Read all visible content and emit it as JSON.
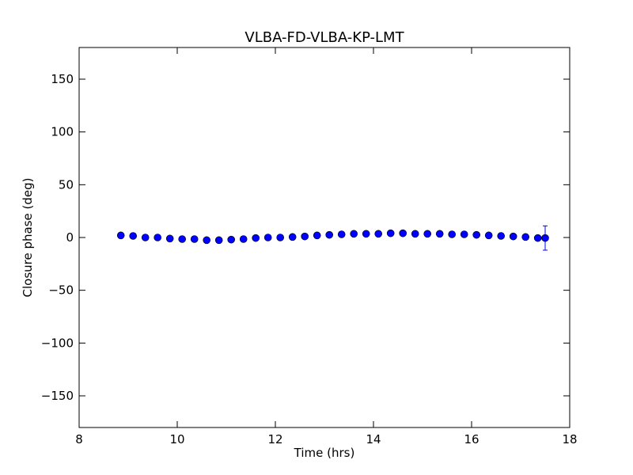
{
  "chart_data": {
    "type": "scatter",
    "title": "VLBA-FD-VLBA-KP-LMT",
    "xlabel": "Time (hrs)",
    "ylabel": "Closure phase (deg)",
    "xlim": [
      8,
      18
    ],
    "ylim": [
      -180,
      180
    ],
    "xticks": [
      8,
      10,
      12,
      14,
      16,
      18
    ],
    "yticks": [
      -150,
      -100,
      -50,
      0,
      50,
      100,
      150
    ],
    "ytick_labels": [
      "−150",
      "−100",
      "−50",
      "0",
      "50",
      "100",
      "150"
    ],
    "grid": false,
    "marker_color": "#0000ff",
    "marker_edge_color": "#000000",
    "series": [
      {
        "x": [
          8.85,
          9.1,
          9.35,
          9.6,
          9.85,
          10.1,
          10.35,
          10.6,
          10.85,
          11.1,
          11.35,
          11.6,
          11.85,
          12.1,
          12.35,
          12.6,
          12.85,
          13.1,
          13.35,
          13.6,
          13.85,
          14.1,
          14.35,
          14.6,
          14.85,
          15.1,
          15.35,
          15.6,
          15.85,
          16.1,
          16.35,
          16.6,
          16.85,
          17.1,
          17.35,
          17.5
        ],
        "y": [
          2,
          1.5,
          0,
          0,
          -1,
          -1.5,
          -1.5,
          -2.5,
          -2.5,
          -2,
          -1.5,
          -0.5,
          0,
          0,
          0.5,
          1,
          2,
          2.5,
          3,
          3.5,
          3.5,
          3.5,
          4,
          4,
          3.5,
          3.5,
          3.5,
          3,
          3,
          2.5,
          2,
          1.5,
          1,
          0.5,
          -0.5,
          -0.5
        ],
        "yerr": [
          0.8,
          0.8,
          0.8,
          0.8,
          0.8,
          0.8,
          0.8,
          0.8,
          0.8,
          0.8,
          0.8,
          0.8,
          0.8,
          0.8,
          0.8,
          0.8,
          0.8,
          0.8,
          0.8,
          0.8,
          0.8,
          0.8,
          0.8,
          0.8,
          0.8,
          0.8,
          0.8,
          0.8,
          0.8,
          0.8,
          0.8,
          0.8,
          0.8,
          0.8,
          0.8,
          11.5
        ]
      }
    ]
  }
}
